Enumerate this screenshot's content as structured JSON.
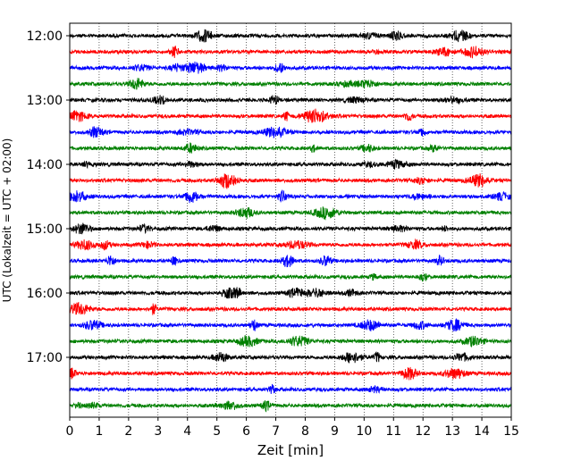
{
  "chart_data": {
    "type": "line",
    "title": "",
    "xlabel": "Zeit  [min]",
    "ylabel": "UTC (Lokalzeit = UTC + 02:00)",
    "xlim": [
      0,
      15
    ],
    "x_ticks": [
      "0",
      "1",
      "2",
      "3",
      "4",
      "5",
      "6",
      "7",
      "8",
      "9",
      "10",
      "11",
      "12",
      "13",
      "14",
      "15"
    ],
    "y_tick_labels": [
      "12:00",
      "13:00",
      "14:00",
      "15:00",
      "16:00",
      "17:00"
    ],
    "grid": "vertical dotted at each minute",
    "trace_interval_minutes": 15,
    "traces": [
      {
        "start_utc": "12:00",
        "color": "#000000"
      },
      {
        "start_utc": "12:15",
        "color": "#ff0000"
      },
      {
        "start_utc": "12:30",
        "color": "#0000ff"
      },
      {
        "start_utc": "12:45",
        "color": "#008000"
      },
      {
        "start_utc": "13:00",
        "color": "#000000"
      },
      {
        "start_utc": "13:15",
        "color": "#ff0000"
      },
      {
        "start_utc": "13:30",
        "color": "#0000ff"
      },
      {
        "start_utc": "13:45",
        "color": "#008000"
      },
      {
        "start_utc": "14:00",
        "color": "#000000"
      },
      {
        "start_utc": "14:15",
        "color": "#ff0000"
      },
      {
        "start_utc": "14:30",
        "color": "#0000ff"
      },
      {
        "start_utc": "14:45",
        "color": "#008000"
      },
      {
        "start_utc": "15:00",
        "color": "#000000"
      },
      {
        "start_utc": "15:15",
        "color": "#ff0000"
      },
      {
        "start_utc": "15:30",
        "color": "#0000ff"
      },
      {
        "start_utc": "15:45",
        "color": "#008000"
      },
      {
        "start_utc": "16:00",
        "color": "#000000"
      },
      {
        "start_utc": "16:15",
        "color": "#ff0000"
      },
      {
        "start_utc": "16:30",
        "color": "#0000ff"
      },
      {
        "start_utc": "16:45",
        "color": "#008000"
      },
      {
        "start_utc": "17:00",
        "color": "#000000"
      },
      {
        "start_utc": "17:15",
        "color": "#ff0000"
      },
      {
        "start_utc": "17:30",
        "color": "#0000ff"
      },
      {
        "start_utc": "17:45",
        "color": "#008000"
      }
    ]
  }
}
